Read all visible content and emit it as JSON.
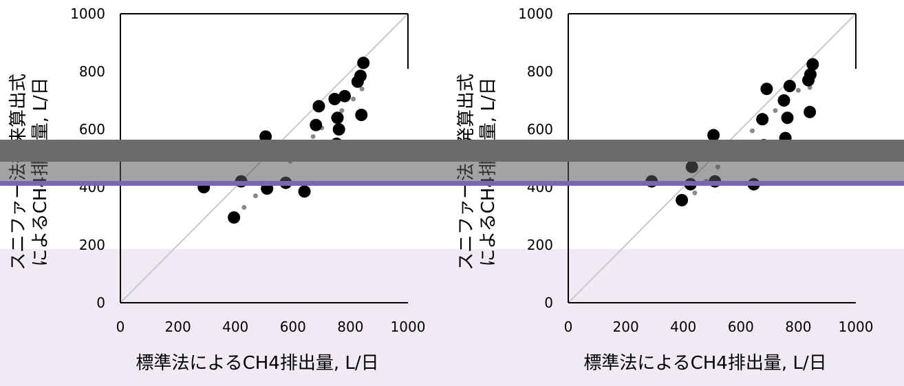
{
  "colors": {
    "dark_band": "#6b6b6b",
    "mid_band": "#585858",
    "purple_band": "#7a66b0",
    "lavender_bg": "#efeaf3",
    "point_fill": "#000000",
    "trend_dot": "#8a8a8a",
    "diagonal": "#c8c8c8"
  },
  "chart_data": [
    {
      "type": "scatter",
      "title": "",
      "xlabel": "標準法によるCH4排出量, L/日",
      "ylabel_line1": "スニファー法従来算出式",
      "ylabel_line2": "によるCH4排出量, L/日",
      "xlim": [
        0,
        1000
      ],
      "ylim": [
        0,
        1000
      ],
      "xticks": [
        "0",
        "200",
        "400",
        "600",
        "800",
        "1000"
      ],
      "yticks": [
        "0",
        "200",
        "400",
        "600",
        "800",
        "1000"
      ],
      "identity_line": true,
      "points": [
        {
          "x": 395,
          "y": 295
        },
        {
          "x": 420,
          "y": 420
        },
        {
          "x": 505,
          "y": 575
        },
        {
          "x": 510,
          "y": 395
        },
        {
          "x": 575,
          "y": 415
        },
        {
          "x": 640,
          "y": 385
        },
        {
          "x": 680,
          "y": 615
        },
        {
          "x": 685,
          "y": 515
        },
        {
          "x": 690,
          "y": 680
        },
        {
          "x": 745,
          "y": 705
        },
        {
          "x": 750,
          "y": 540
        },
        {
          "x": 752,
          "y": 550
        },
        {
          "x": 755,
          "y": 640
        },
        {
          "x": 760,
          "y": 600
        },
        {
          "x": 780,
          "y": 715
        },
        {
          "x": 825,
          "y": 765
        },
        {
          "x": 835,
          "y": 785
        },
        {
          "x": 838,
          "y": 650
        },
        {
          "x": 845,
          "y": 830
        },
        {
          "x": 290,
          "y": 400
        }
      ],
      "trend_points": [
        {
          "x": 395,
          "y": 290
        },
        {
          "x": 430,
          "y": 330
        },
        {
          "x": 470,
          "y": 370
        },
        {
          "x": 510,
          "y": 410
        },
        {
          "x": 590,
          "y": 490
        },
        {
          "x": 630,
          "y": 530
        },
        {
          "x": 670,
          "y": 575
        },
        {
          "x": 700,
          "y": 605
        },
        {
          "x": 740,
          "y": 640
        },
        {
          "x": 770,
          "y": 665
        },
        {
          "x": 810,
          "y": 705
        },
        {
          "x": 840,
          "y": 740
        }
      ]
    },
    {
      "type": "scatter",
      "title": "",
      "xlabel": "標準法によるCH4排出量, L/日",
      "ylabel_line1": "スニファー法開発算出式",
      "ylabel_line2": "によるCH4排出量, L/日",
      "xlim": [
        0,
        1000
      ],
      "ylim": [
        0,
        1000
      ],
      "xticks": [
        "0",
        "200",
        "400",
        "600",
        "800",
        "1000"
      ],
      "yticks": [
        "0",
        "200",
        "400",
        "600",
        "800",
        "1000"
      ],
      "identity_line": true,
      "points": [
        {
          "x": 395,
          "y": 355
        },
        {
          "x": 425,
          "y": 410
        },
        {
          "x": 430,
          "y": 470
        },
        {
          "x": 505,
          "y": 580
        },
        {
          "x": 510,
          "y": 420
        },
        {
          "x": 645,
          "y": 410
        },
        {
          "x": 675,
          "y": 635
        },
        {
          "x": 680,
          "y": 545
        },
        {
          "x": 690,
          "y": 740
        },
        {
          "x": 750,
          "y": 700
        },
        {
          "x": 755,
          "y": 570
        },
        {
          "x": 762,
          "y": 640
        },
        {
          "x": 770,
          "y": 750
        },
        {
          "x": 835,
          "y": 770
        },
        {
          "x": 840,
          "y": 660
        },
        {
          "x": 842,
          "y": 790
        },
        {
          "x": 850,
          "y": 825
        },
        {
          "x": 290,
          "y": 420
        }
      ],
      "trend_points": [
        {
          "x": 395,
          "y": 345
        },
        {
          "x": 440,
          "y": 380
        },
        {
          "x": 480,
          "y": 420
        },
        {
          "x": 520,
          "y": 470
        },
        {
          "x": 560,
          "y": 510
        },
        {
          "x": 600,
          "y": 555
        },
        {
          "x": 640,
          "y": 595
        },
        {
          "x": 680,
          "y": 630
        },
        {
          "x": 720,
          "y": 665
        },
        {
          "x": 760,
          "y": 700
        },
        {
          "x": 800,
          "y": 735
        },
        {
          "x": 840,
          "y": 745
        }
      ]
    }
  ]
}
